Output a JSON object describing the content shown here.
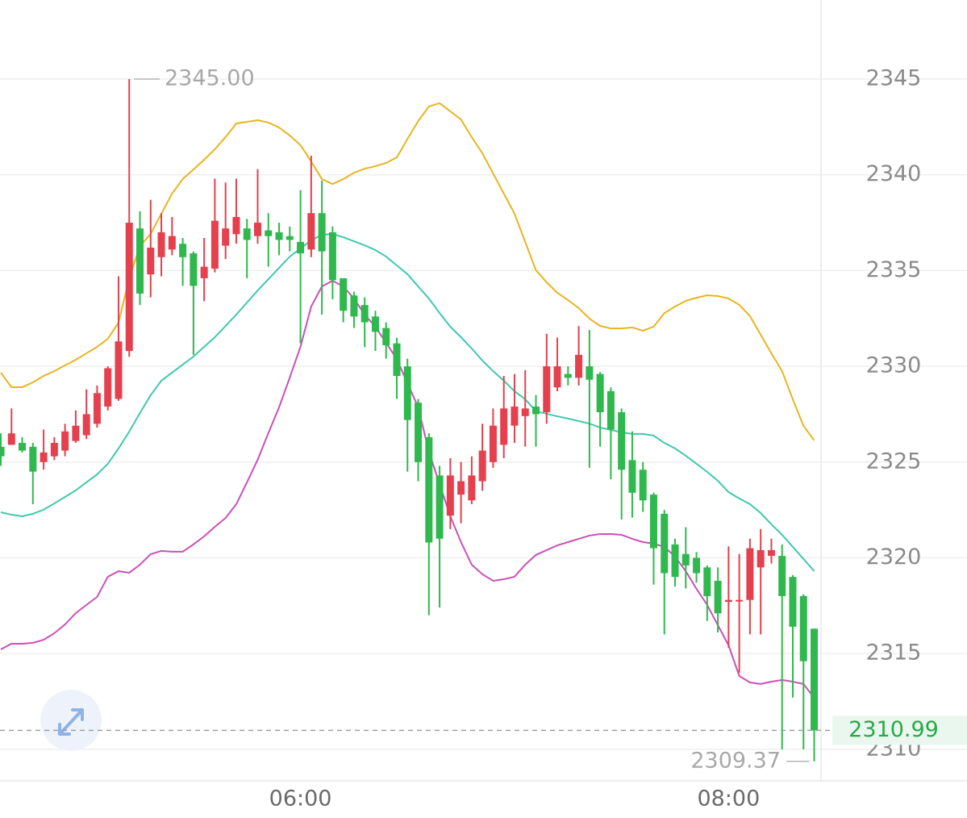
{
  "chart_data": {
    "type": "candlestick",
    "categories": [
      null,
      null,
      null,
      null,
      null,
      null,
      null,
      null,
      null,
      null,
      null,
      null,
      null,
      null,
      null,
      null,
      null,
      null,
      null,
      null,
      null,
      null,
      null,
      null,
      null,
      null,
      null,
      null,
      "06:00",
      null,
      null,
      null,
      null,
      null,
      null,
      null,
      null,
      null,
      null,
      null,
      null,
      null,
      null,
      null,
      null,
      null,
      null,
      null,
      null,
      null,
      null,
      null,
      null,
      null,
      null,
      null,
      null,
      null,
      null,
      null,
      null,
      null,
      null,
      null,
      null,
      null,
      null,
      null,
      "08:00",
      null,
      null,
      null,
      null,
      null,
      null,
      null,
      null
    ],
    "open": [
      2325.8,
      2325.9,
      2326.0,
      2325.8,
      2325.0,
      2325.3,
      2325.6,
      2326.1,
      2326.4,
      2327.0,
      2327.9,
      2328.3,
      2330.8,
      2337.2,
      2334.8,
      2335.7,
      2336.1,
      2336.4,
      2335.9,
      2334.6,
      2335.1,
      2336.3,
      2336.9,
      2337.2,
      2336.8,
      2337.1,
      2337.0,
      2336.8,
      2336.5,
      2336.1,
      2338.0,
      2337.0,
      2334.6,
      2333.7,
      2333.2,
      2332.6,
      2332.0,
      2331.2,
      2330.0,
      2328.1,
      2326.3,
      2324.3,
      2322.2,
      2323.3,
      2323.0,
      2324.0,
      2325.0,
      2325.9,
      2326.9,
      2327.4,
      2327.9,
      2327.6,
      2328.9,
      2329.6,
      2329.4,
      2330.0,
      2329.6,
      2328.7,
      2327.6,
      2325.1,
      2324.6,
      2323.3,
      2322.3,
      2320.7,
      2320.2,
      2320.0,
      2319.5,
      2318.8,
      2317.7,
      2317.8,
      2317.8,
      2319.5,
      2320.1,
      2320.1,
      2319.0,
      2318.0,
      2316.3
    ],
    "high": [
      2326.5,
      2327.8,
      2326.3,
      2326.0,
      2326.7,
      2326.3,
      2327.0,
      2327.7,
      2328.8,
      2329.0,
      2330.0,
      2334.7,
      2345.0,
      2338.1,
      2338.7,
      2338.0,
      2337.8,
      2336.7,
      2336.0,
      2336.7,
      2339.8,
      2339.6,
      2339.8,
      2337.7,
      2340.3,
      2338.0,
      2337.5,
      2337.3,
      2339.2,
      2341.0,
      2339.7,
      2337.3,
      2334.6,
      2333.9,
      2333.6,
      2332.9,
      2332.3,
      2331.5,
      2330.4,
      2328.3,
      2326.5,
      2324.8,
      2325.2,
      2325.0,
      2325.3,
      2327.0,
      2327.8,
      2329.5,
      2329.6,
      2329.8,
      2328.5,
      2331.7,
      2331.5,
      2330.0,
      2332.1,
      2331.9,
      2329.7,
      2328.9,
      2327.8,
      2326.6,
      2325.0,
      2323.4,
      2322.5,
      2321.0,
      2321.6,
      2320.3,
      2319.6,
      2319.5,
      2320.6,
      2320.2,
      2321.0,
      2321.5,
      2321.0,
      2320.7,
      2319.1,
      2318.1,
      2316.3
    ],
    "low": [
      2324.8,
      2325.9,
      2325.5,
      2322.8,
      2324.6,
      2325.1,
      2325.3,
      2326.0,
      2326.2,
      2326.8,
      2327.7,
      2328.2,
      2330.5,
      2333.2,
      2333.6,
      2334.7,
      2335.8,
      2334.2,
      2330.6,
      2333.4,
      2334.9,
      2335.6,
      2336.4,
      2334.6,
      2336.4,
      2335.2,
      2335.8,
      2336.0,
      2331.2,
      2335.7,
      2332.7,
      2333.5,
      2332.3,
      2332.0,
      2331.0,
      2330.8,
      2330.4,
      2328.3,
      2324.5,
      2324.0,
      2317.0,
      2317.4,
      2321.5,
      2321.8,
      2322.8,
      2323.5,
      2324.7,
      2325.2,
      2326.0,
      2325.8,
      2325.8,
      2327.0,
      2328.7,
      2329.0,
      2329.0,
      2324.7,
      2325.8,
      2324.1,
      2322.0,
      2322.1,
      2322.4,
      2318.6,
      2316.0,
      2318.5,
      2318.4,
      2318.7,
      2316.7,
      2316.1,
      2315.3,
      2314.0,
      2316.0,
      2316.0,
      2319.7,
      2310.0,
      2312.7,
      2310.0,
      2309.37
    ],
    "close": [
      2325.3,
      2326.5,
      2325.6,
      2324.5,
      2325.5,
      2326.0,
      2326.6,
      2326.9,
      2327.5,
      2328.6,
      2329.9,
      2331.3,
      2337.5,
      2333.8,
      2336.2,
      2337.0,
      2336.8,
      2335.7,
      2334.2,
      2335.2,
      2337.6,
      2337.2,
      2337.8,
      2336.6,
      2337.5,
      2336.8,
      2336.6,
      2336.6,
      2335.9,
      2338.0,
      2336.0,
      2334.5,
      2332.9,
      2332.6,
      2332.3,
      2331.8,
      2331.1,
      2329.5,
      2327.2,
      2325.0,
      2320.8,
      2321.0,
      2324.3,
      2324.0,
      2324.3,
      2325.6,
      2326.9,
      2327.8,
      2327.9,
      2327.8,
      2327.5,
      2330.0,
      2330.0,
      2329.4,
      2330.6,
      2329.3,
      2327.6,
      2326.7,
      2324.6,
      2323.4,
      2323.0,
      2320.5,
      2319.2,
      2319.0,
      2319.6,
      2319.2,
      2318.0,
      2317.1,
      2317.8,
      2317.8,
      2320.5,
      2320.4,
      2320.4,
      2318.0,
      2316.4,
      2314.6,
      2310.99
    ],
    "up_color": "#e4404e",
    "down_color": "#2fb84e",
    "lines": [
      {
        "color": "#e9b41f",
        "values": [
          2329.67,
          2328.91,
          2328.91,
          2329.16,
          2329.5,
          2329.75,
          2330.05,
          2330.34,
          2330.68,
          2331.02,
          2331.44,
          2332.28,
          2334.6,
          2336.28,
          2336.91,
          2337.97,
          2339.02,
          2339.78,
          2340.28,
          2340.79,
          2341.34,
          2341.97,
          2342.68,
          2342.77,
          2342.85,
          2342.73,
          2342.47,
          2342.05,
          2341.55,
          2340.7,
          2339.78,
          2339.52,
          2339.78,
          2340.11,
          2340.32,
          2340.45,
          2340.62,
          2340.91,
          2341.88,
          2342.81,
          2343.57,
          2343.74,
          2343.32,
          2342.89,
          2341.97,
          2341.12,
          2340.07,
          2339.02,
          2337.97,
          2336.49,
          2335.02,
          2334.39,
          2333.84,
          2333.46,
          2333.04,
          2332.49,
          2332.11,
          2331.98,
          2331.98,
          2332.03,
          2331.86,
          2332.07,
          2332.78,
          2333.12,
          2333.42,
          2333.58,
          2333.71,
          2333.67,
          2333.54,
          2333.21,
          2332.62,
          2331.65,
          2330.68,
          2329.75,
          2328.28,
          2326.89,
          2326.13
        ]
      },
      {
        "color": "#3fc9ad",
        "values": [
          2322.38,
          2322.25,
          2322.17,
          2322.3,
          2322.51,
          2322.84,
          2323.18,
          2323.52,
          2323.94,
          2324.36,
          2324.91,
          2325.71,
          2326.59,
          2327.56,
          2328.49,
          2329.25,
          2329.67,
          2330.09,
          2330.51,
          2331.02,
          2331.52,
          2332.11,
          2332.7,
          2333.33,
          2333.96,
          2334.55,
          2335.14,
          2335.73,
          2336.15,
          2336.58,
          2336.87,
          2336.91,
          2336.74,
          2336.53,
          2336.32,
          2336.07,
          2335.73,
          2335.27,
          2334.81,
          2334.17,
          2333.54,
          2332.78,
          2332.07,
          2331.52,
          2330.93,
          2330.3,
          2329.75,
          2329.25,
          2328.7,
          2328.28,
          2327.65,
          2327.52,
          2327.39,
          2327.27,
          2327.14,
          2327.01,
          2326.8,
          2326.68,
          2326.55,
          2326.47,
          2326.47,
          2326.38,
          2326.0,
          2325.71,
          2325.33,
          2324.91,
          2324.49,
          2324.02,
          2323.43,
          2323.1,
          2322.8,
          2322.34,
          2321.75,
          2321.2,
          2320.57,
          2319.94,
          2319.3
        ]
      },
      {
        "color": "#cb50b8",
        "values": [
          2315.22,
          2315.51,
          2315.51,
          2315.56,
          2315.72,
          2316.06,
          2316.52,
          2317.11,
          2317.54,
          2317.96,
          2319.01,
          2319.3,
          2319.22,
          2319.64,
          2320.19,
          2320.36,
          2320.32,
          2320.32,
          2320.7,
          2321.12,
          2321.62,
          2322.08,
          2322.8,
          2323.94,
          2325.12,
          2326.51,
          2327.86,
          2329.41,
          2331.02,
          2333.12,
          2334.17,
          2334.47,
          2334.17,
          2333.54,
          2332.7,
          2332.07,
          2331.23,
          2330.38,
          2329.12,
          2327.86,
          2325.54,
          2323.85,
          2322.17,
          2320.82,
          2319.64,
          2319.14,
          2318.8,
          2318.88,
          2319.01,
          2319.64,
          2320.15,
          2320.4,
          2320.65,
          2320.82,
          2320.99,
          2321.16,
          2321.24,
          2321.24,
          2321.2,
          2320.99,
          2320.82,
          2320.74,
          2320.57,
          2320.06,
          2319.3,
          2318.38,
          2317.54,
          2316.48,
          2315.43,
          2313.83,
          2313.49,
          2313.41,
          2313.53,
          2313.62,
          2313.53,
          2313.41,
          2312.69
        ]
      }
    ],
    "ylim": [
      2308.35,
      2349.13
    ],
    "yticks": [
      2310,
      2315,
      2320,
      2325,
      2330,
      2335,
      2340,
      2345
    ],
    "grid": true,
    "high_marker": {
      "value": 2345,
      "label": "2345.00"
    },
    "low_marker": {
      "value": 2309.37,
      "label": "2309.37"
    },
    "last_price": {
      "value": 2310.99,
      "label": "2310.99"
    }
  }
}
